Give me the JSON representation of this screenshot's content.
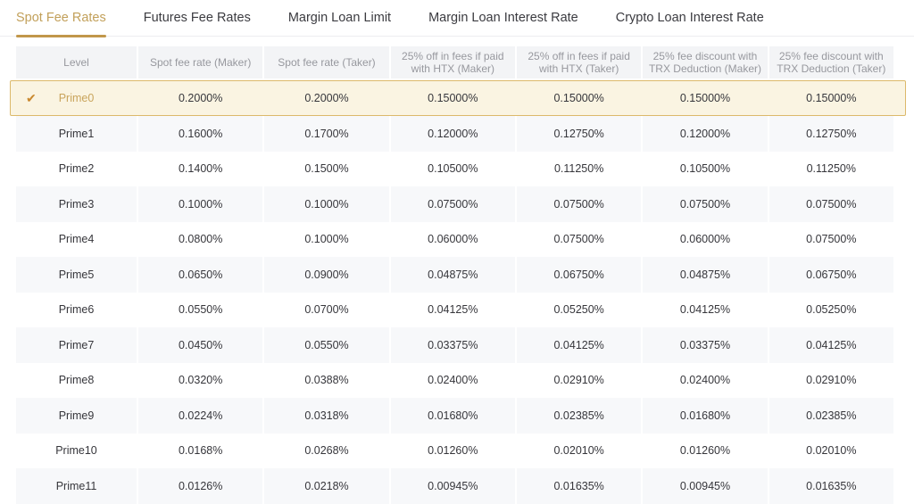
{
  "colors": {
    "accent_text": "#C2A05A",
    "active_tab_underline": "#C1974A",
    "selected_row_bg": "#FAF4E2",
    "selected_row_border": "#DCB96B",
    "check_icon": "#C9882E",
    "header_bg": "#F3F4F6",
    "stripe_bg": "#F7F8FA"
  },
  "icons": {
    "check": "✔"
  },
  "tabs": [
    {
      "label": "Spot Fee Rates",
      "active": true
    },
    {
      "label": "Futures Fee Rates",
      "active": false
    },
    {
      "label": "Margin Loan Limit",
      "active": false
    },
    {
      "label": "Margin Loan Interest Rate",
      "active": false
    },
    {
      "label": "Crypto Loan Interest Rate",
      "active": false
    }
  ],
  "table": {
    "columns": [
      "Level",
      "Spot fee rate (Maker)",
      "Spot fee rate (Taker)",
      "25% off in fees if paid with HTX (Maker)",
      "25% off in fees if paid with HTX (Taker)",
      "25% fee discount with TRX Deduction (Maker)",
      "25% fee discount with TRX Deduction (Taker)"
    ],
    "rows": [
      {
        "level": "Prime0",
        "selected": true,
        "values": [
          "0.2000%",
          "0.2000%",
          "0.15000%",
          "0.15000%",
          "0.15000%",
          "0.15000%"
        ]
      },
      {
        "level": "Prime1",
        "selected": false,
        "values": [
          "0.1600%",
          "0.1700%",
          "0.12000%",
          "0.12750%",
          "0.12000%",
          "0.12750%"
        ]
      },
      {
        "level": "Prime2",
        "selected": false,
        "values": [
          "0.1400%",
          "0.1500%",
          "0.10500%",
          "0.11250%",
          "0.10500%",
          "0.11250%"
        ]
      },
      {
        "level": "Prime3",
        "selected": false,
        "values": [
          "0.1000%",
          "0.1000%",
          "0.07500%",
          "0.07500%",
          "0.07500%",
          "0.07500%"
        ]
      },
      {
        "level": "Prime4",
        "selected": false,
        "values": [
          "0.0800%",
          "0.1000%",
          "0.06000%",
          "0.07500%",
          "0.06000%",
          "0.07500%"
        ]
      },
      {
        "level": "Prime5",
        "selected": false,
        "values": [
          "0.0650%",
          "0.0900%",
          "0.04875%",
          "0.06750%",
          "0.04875%",
          "0.06750%"
        ]
      },
      {
        "level": "Prime6",
        "selected": false,
        "values": [
          "0.0550%",
          "0.0700%",
          "0.04125%",
          "0.05250%",
          "0.04125%",
          "0.05250%"
        ]
      },
      {
        "level": "Prime7",
        "selected": false,
        "values": [
          "0.0450%",
          "0.0550%",
          "0.03375%",
          "0.04125%",
          "0.03375%",
          "0.04125%"
        ]
      },
      {
        "level": "Prime8",
        "selected": false,
        "values": [
          "0.0320%",
          "0.0388%",
          "0.02400%",
          "0.02910%",
          "0.02400%",
          "0.02910%"
        ]
      },
      {
        "level": "Prime9",
        "selected": false,
        "values": [
          "0.0224%",
          "0.0318%",
          "0.01680%",
          "0.02385%",
          "0.01680%",
          "0.02385%"
        ]
      },
      {
        "level": "Prime10",
        "selected": false,
        "values": [
          "0.0168%",
          "0.0268%",
          "0.01260%",
          "0.02010%",
          "0.01260%",
          "0.02010%"
        ]
      },
      {
        "level": "Prime11",
        "selected": false,
        "values": [
          "0.0126%",
          "0.0218%",
          "0.00945%",
          "0.01635%",
          "0.00945%",
          "0.01635%"
        ]
      }
    ]
  }
}
